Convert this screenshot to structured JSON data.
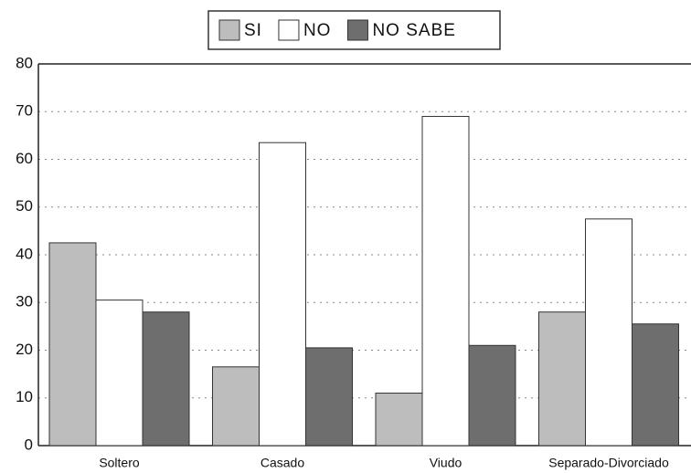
{
  "chart_data": {
    "type": "bar",
    "categories": [
      "Soltero",
      "Casado",
      "Viudo",
      "Separado-Divorciado"
    ],
    "series": [
      {
        "name": "SI",
        "color": "#bdbdbd",
        "values": [
          42.5,
          16.5,
          11,
          28
        ]
      },
      {
        "name": "NO",
        "color": "#ffffff",
        "values": [
          30.5,
          63.5,
          69,
          47.5
        ]
      },
      {
        "name": "NO SABE",
        "color": "#6e6e6e",
        "values": [
          28,
          20.5,
          21,
          25.5
        ]
      }
    ],
    "ylim": [
      0,
      80
    ],
    "yticks": [
      0,
      10,
      20,
      30,
      40,
      50,
      60,
      70,
      80
    ],
    "grid": true,
    "legend": "top"
  }
}
